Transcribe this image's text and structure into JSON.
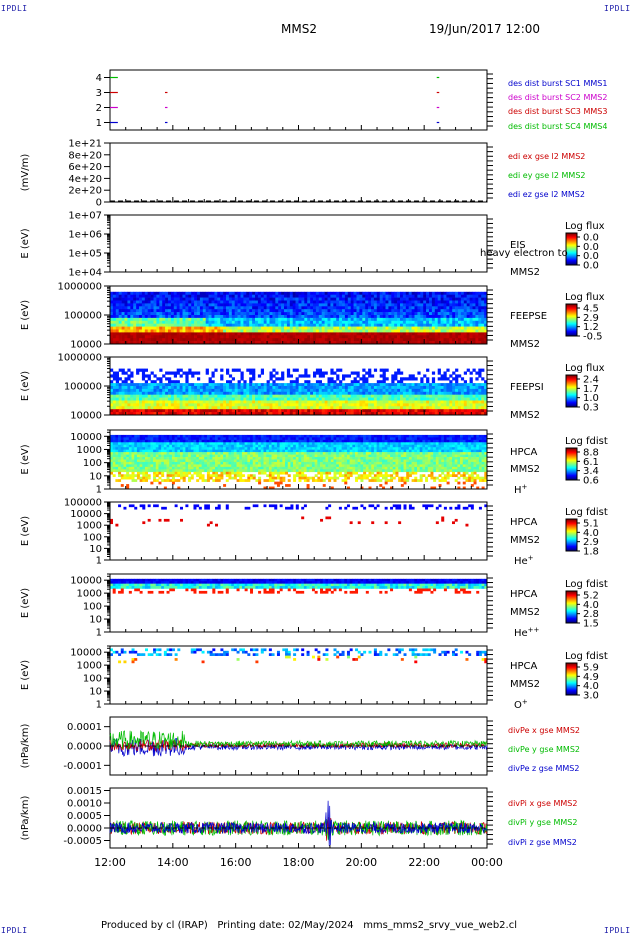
{
  "header": {
    "left_tag": "IPDLI",
    "right_tag": "IPDLI",
    "title": "MMS2",
    "datetime": "19/Jun/2017 12:00"
  },
  "footer": {
    "text": "Produced by cl (IRAP)   Printing date: 02/May/2024   mms_mms2_srvy_vue_web2.cl",
    "left_tag": "IPDLI",
    "right_tag": "IPDLI"
  },
  "x_axis": {
    "ticks": [
      "12:00",
      "14:00",
      "16:00",
      "18:00",
      "20:00",
      "22:00",
      "00:00"
    ]
  },
  "chart_data": [
    {
      "type": "line",
      "panel": "burst",
      "yticks": [
        "1",
        "2",
        "3",
        "4"
      ],
      "ylim": [
        0.5,
        4.5
      ],
      "legend": [
        {
          "label": "des dist burst SC1 MMS1",
          "color": "#0000cc"
        },
        {
          "label": "des dist burst SC2 MMS2",
          "color": "#cc00cc"
        },
        {
          "label": "des dist burst SC3 MMS3",
          "color": "#cc0000"
        },
        {
          "label": "des dist burst SC4 MMS4",
          "color": "#00bb00"
        }
      ],
      "series": [
        {
          "name": "des dist burst SC1 MMS1",
          "level": 1,
          "color": "#0000cc",
          "segments_hours": [
            [
              12.0,
              12.25
            ],
            [
              13.75,
              13.8
            ],
            [
              22.4,
              22.45
            ]
          ]
        },
        {
          "name": "des dist burst SC2 MMS2",
          "level": 2,
          "color": "#cc00cc",
          "segments_hours": [
            [
              12.0,
              12.25
            ],
            [
              13.75,
              13.8
            ],
            [
              22.4,
              22.45
            ]
          ]
        },
        {
          "name": "des dist burst SC3 MMS3",
          "level": 3,
          "color": "#cc0000",
          "segments_hours": [
            [
              12.0,
              12.25
            ],
            [
              13.75,
              13.8
            ],
            [
              22.4,
              22.45
            ]
          ]
        },
        {
          "name": "des dist burst SC4 MMS4",
          "level": 4,
          "color": "#00bb00",
          "segments_hours": [
            [
              12.0,
              12.25
            ],
            [
              22.4,
              22.45
            ]
          ]
        }
      ]
    },
    {
      "type": "line",
      "panel": "edi",
      "ylabel": "(mV/m)",
      "yticks": [
        "0",
        "2e+20",
        "4e+20",
        "6e+20",
        "8e+20",
        "1e+21"
      ],
      "ylim": [
        0,
        1e+21
      ],
      "legend": [
        {
          "label": "edi ex gse l2 MMS2",
          "color": "#cc0000"
        },
        {
          "label": "edi ey gse l2 MMS2",
          "color": "#00bb00"
        },
        {
          "label": "edi ez gse l2 MMS2",
          "color": "#0000cc"
        }
      ]
    },
    {
      "type": "heatmap",
      "panel": "eis",
      "ylabel": "E (eV)",
      "yticks": [
        "1e+04",
        "1e+05",
        "1e+06",
        "1e+07"
      ],
      "ylim": [
        10000,
        10000000
      ],
      "instrument": "EIS",
      "overlay": "heavy electron to",
      "spacecraft": "MMS2",
      "colorbar": {
        "title": "Log flux",
        "ticks": [
          "0.0",
          "0.0",
          "0.0",
          "0.0"
        ]
      }
    },
    {
      "type": "heatmap",
      "panel": "feepse",
      "ylabel": "E (eV)",
      "yticks": [
        "10000",
        "100000",
        "1000000"
      ],
      "ylim": [
        10000,
        1000000
      ],
      "instrument": "FEEPSE",
      "spacecraft": "MMS2",
      "colorbar": {
        "title": "Log flux",
        "ticks": [
          "4.5",
          "2.9",
          "1.2",
          "-0.5"
        ]
      }
    },
    {
      "type": "heatmap",
      "panel": "feepsi",
      "ylabel": "E (eV)",
      "yticks": [
        "10000",
        "100000",
        "1000000"
      ],
      "ylim": [
        10000,
        1000000
      ],
      "instrument": "FEEPSI",
      "spacecraft": "MMS2",
      "colorbar": {
        "title": "Log flux",
        "ticks": [
          "2.4",
          "1.7",
          "1.0",
          "0.3"
        ]
      }
    },
    {
      "type": "heatmap",
      "panel": "hpca_h",
      "ylabel": "E (eV)",
      "yticks": [
        "1",
        "10",
        "100",
        "1000",
        "10000"
      ],
      "ylim": [
        1,
        30000
      ],
      "instrument": "HPCA",
      "spacecraft": "MMS2",
      "species": "H",
      "species_sup": "+",
      "colorbar": {
        "title": "Log fdist",
        "ticks": [
          "8.8",
          "6.1",
          "3.4",
          "0.6"
        ]
      }
    },
    {
      "type": "heatmap",
      "panel": "hpca_he",
      "ylabel": "E (eV)",
      "yticks": [
        "1",
        "10",
        "100",
        "1000",
        "10000",
        "100000"
      ],
      "ylim": [
        1,
        100000
      ],
      "instrument": "HPCA",
      "spacecraft": "MMS2",
      "species": "He",
      "species_sup": "+",
      "colorbar": {
        "title": "Log fdist",
        "ticks": [
          "5.1",
          "4.0",
          "2.9",
          "1.8"
        ]
      }
    },
    {
      "type": "heatmap",
      "panel": "hpca_hepp",
      "ylabel": "E (eV)",
      "yticks": [
        "1",
        "10",
        "100",
        "1000",
        "10000"
      ],
      "ylim": [
        1,
        30000
      ],
      "instrument": "HPCA",
      "spacecraft": "MMS2",
      "species": "He",
      "species_sup": "++",
      "colorbar": {
        "title": "Log fdist",
        "ticks": [
          "5.2",
          "4.0",
          "2.8",
          "1.5"
        ]
      }
    },
    {
      "type": "heatmap",
      "panel": "hpca_o",
      "ylabel": "E (eV)",
      "yticks": [
        "1",
        "10",
        "100",
        "1000",
        "10000"
      ],
      "ylim": [
        1,
        30000
      ],
      "instrument": "HPCA",
      "spacecraft": "MMS2",
      "species": "O",
      "species_sup": "+",
      "colorbar": {
        "title": "Log fdist",
        "ticks": [
          "5.9",
          "4.9",
          "4.0",
          "3.0"
        ]
      }
    },
    {
      "type": "line",
      "panel": "divpe",
      "ylabel": "(nPa/km)",
      "yticks": [
        "-0.0001",
        "0.0000",
        "0.0001"
      ],
      "ylim": [
        -0.00015,
        0.00015
      ],
      "legend": [
        {
          "label": "divPe x gse MMS2",
          "color": "#cc0000"
        },
        {
          "label": "divPe y gse MMS2",
          "color": "#00bb00"
        },
        {
          "label": "divPe z gse MMS2",
          "color": "#0000cc"
        }
      ]
    },
    {
      "type": "line",
      "panel": "divpi",
      "ylabel": "(nPa/km)",
      "yticks": [
        "-0.0005",
        "0.0000",
        "0.0005",
        "0.0010",
        "0.0015"
      ],
      "ylim": [
        -0.0008,
        0.0016
      ],
      "legend": [
        {
          "label": "divPi x gse MMS2",
          "color": "#cc0000"
        },
        {
          "label": "divPi y gse MMS2",
          "color": "#00bb00"
        },
        {
          "label": "divPi z gse MMS2",
          "color": "#0000cc"
        }
      ]
    }
  ]
}
